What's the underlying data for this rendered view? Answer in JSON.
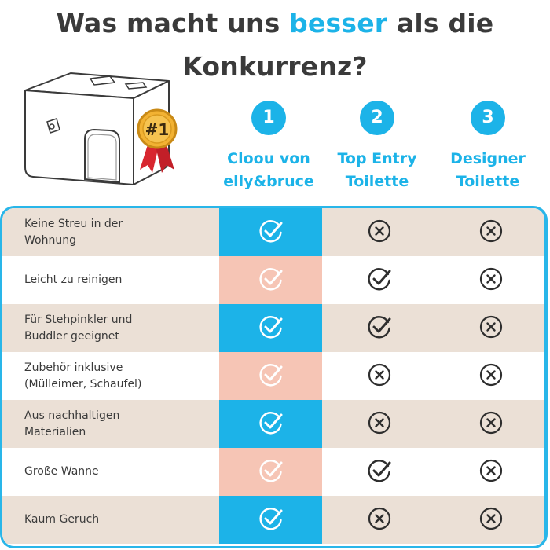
{
  "headline": {
    "part1": "Was macht uns ",
    "accent": "besser",
    "part2": " als die",
    "line2": "Konkurrenz?"
  },
  "badge_text": "#1",
  "columns": [
    {
      "number": "1",
      "line1": "Cloou von",
      "line2": "elly&bruce"
    },
    {
      "number": "2",
      "line1": "Top Entry",
      "line2": "Toilette"
    },
    {
      "number": "3",
      "line1": "Designer",
      "line2": "Toilette"
    }
  ],
  "rows": [
    {
      "line1": "Keine Streu in der",
      "line2": "Wohnung",
      "cloou": "check",
      "top_entry": "cross",
      "designer": "cross"
    },
    {
      "line1": "Leicht zu reinigen",
      "line2": "",
      "cloou": "check",
      "top_entry": "check",
      "designer": "cross"
    },
    {
      "line1": "Für Stehpinkler und",
      "line2": "Buddler geeignet",
      "cloou": "check",
      "top_entry": "check",
      "designer": "cross"
    },
    {
      "line1": "Zubehör inklusive",
      "line2": "(Mülleimer, Schaufel)",
      "cloou": "check",
      "top_entry": "cross",
      "designer": "cross"
    },
    {
      "line1": "Aus nachhaltigen",
      "line2": "Materialien",
      "cloou": "check",
      "top_entry": "cross",
      "designer": "cross"
    },
    {
      "line1": "Große Wanne",
      "line2": "",
      "cloou": "check",
      "top_entry": "check",
      "designer": "cross"
    },
    {
      "line1": "Kaum Geruch",
      "line2": "",
      "cloou": "check",
      "top_entry": "cross",
      "designer": "cross"
    }
  ],
  "colors": {
    "accent_blue": "#1cb3e8",
    "peach": "#f6c5b5",
    "tan": "#ebe0d6",
    "text_dark": "#3a3a3a"
  },
  "icons": {
    "check": "check-circle-icon",
    "cross": "x-circle-icon"
  }
}
